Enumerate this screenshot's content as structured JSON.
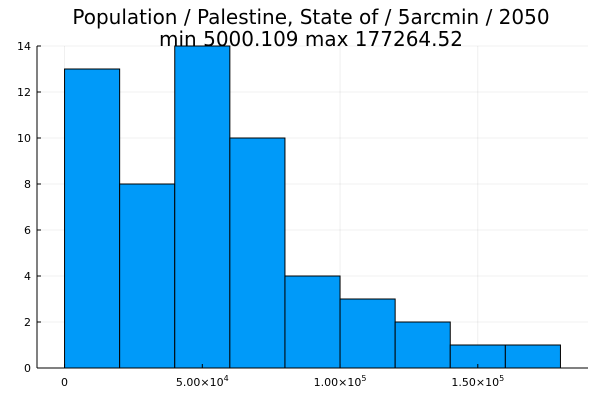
{
  "chart_data": {
    "type": "bar",
    "title_line1": "Population / Palestine, State of / 5arcmin / 2050",
    "title_line2": "min 5000.109  max 177264.52",
    "bin_edges": [
      0,
      20000,
      40000,
      60000,
      80000,
      100000,
      120000,
      140000,
      160000,
      180000
    ],
    "values": [
      13,
      8,
      14,
      10,
      4,
      3,
      2,
      1,
      1
    ],
    "xlim": [
      -10000,
      190000
    ],
    "ylim": [
      0,
      14
    ],
    "x_ticks": [
      {
        "value": 0,
        "label": "0",
        "exp": ""
      },
      {
        "value": 50000,
        "label": "5.00×10",
        "exp": "4"
      },
      {
        "value": 100000,
        "label": "1.00×10",
        "exp": "5"
      },
      {
        "value": 150000,
        "label": "1.50×10",
        "exp": "5"
      }
    ],
    "y_ticks": [
      0,
      2,
      4,
      6,
      8,
      10,
      12,
      14
    ],
    "bar_color": "#009af9",
    "grid": true,
    "legend": false
  }
}
